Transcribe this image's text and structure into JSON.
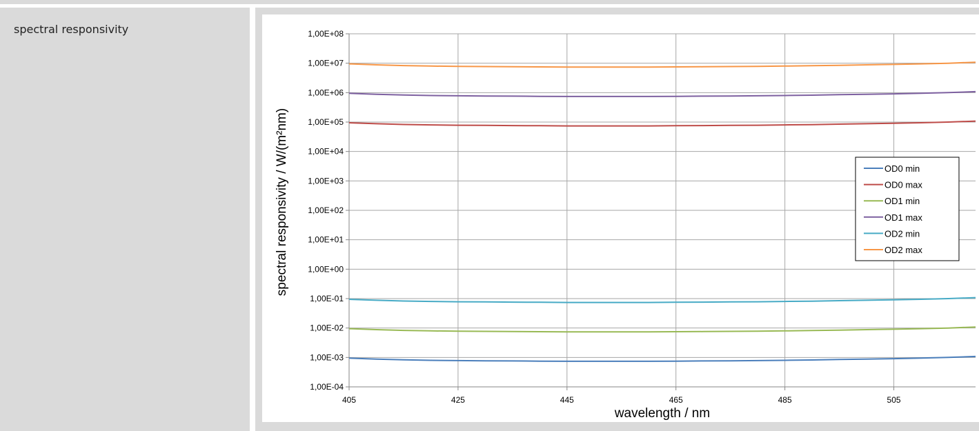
{
  "row_label": "spectral responsivity",
  "chart_data": {
    "type": "line",
    "title": "",
    "xlabel": "wavelength / nm",
    "ylabel": "spectral responsivity  / W/(m²nm)",
    "yscale": "log",
    "xlim": [
      405,
      520
    ],
    "ylim": [
      0.0001,
      100000000
    ],
    "x_ticks": [
      405,
      425,
      445,
      465,
      485,
      505
    ],
    "y_tick_labels": [
      "1,00E+08",
      "1,00E+07",
      "1,00E+06",
      "1,00E+05",
      "1,00E+04",
      "1,00E+03",
      "1,00E+02",
      "1,00E+01",
      "1,00E+00",
      "1,00E-01",
      "1,00E-02",
      "1,00E-03",
      "1,00E-04"
    ],
    "grid": true,
    "legend_position": "right",
    "x": [
      405,
      410,
      415,
      420,
      425,
      430,
      435,
      440,
      445,
      450,
      455,
      460,
      465,
      470,
      475,
      480,
      485,
      490,
      495,
      500,
      505,
      510,
      515,
      520
    ],
    "series": [
      {
        "name": "OD0 min",
        "color": "#4a7ebb",
        "values": [
          0.00095,
          0.00088,
          0.00083,
          0.0008,
          0.00078,
          0.00077,
          0.00076,
          0.00075,
          0.00074,
          0.00074,
          0.00074,
          0.00074,
          0.00075,
          0.00076,
          0.00077,
          0.00078,
          0.0008,
          0.00082,
          0.00085,
          0.00088,
          0.00091,
          0.00095,
          0.001,
          0.00108
        ]
      },
      {
        "name": "OD0 max",
        "color": "#be4b48",
        "values": [
          95000,
          88000,
          83000,
          80000,
          78000,
          77000,
          76000,
          75000,
          74000,
          74000,
          74000,
          74000,
          75000,
          76000,
          77000,
          78000,
          80000,
          82000,
          85000,
          88000,
          91000,
          95000,
          100000,
          108000
        ]
      },
      {
        "name": "OD1 min",
        "color": "#98b954",
        "values": [
          0.0095,
          0.0088,
          0.0083,
          0.008,
          0.0078,
          0.0077,
          0.0076,
          0.0075,
          0.0074,
          0.0074,
          0.0074,
          0.0074,
          0.0075,
          0.0076,
          0.0077,
          0.0078,
          0.008,
          0.0082,
          0.0085,
          0.0088,
          0.0091,
          0.0095,
          0.01,
          0.0108
        ]
      },
      {
        "name": "OD1 max",
        "color": "#7d60a0",
        "values": [
          950000,
          880000,
          830000,
          800000,
          780000,
          770000,
          760000,
          750000,
          740000,
          740000,
          740000,
          740000,
          750000,
          760000,
          770000,
          780000,
          800000,
          820000,
          850000,
          880000,
          910000,
          950000,
          1000000,
          1080000
        ]
      },
      {
        "name": "OD2 min",
        "color": "#46aac5",
        "values": [
          0.095,
          0.088,
          0.083,
          0.08,
          0.078,
          0.077,
          0.076,
          0.075,
          0.074,
          0.074,
          0.074,
          0.074,
          0.075,
          0.076,
          0.077,
          0.078,
          0.08,
          0.082,
          0.085,
          0.088,
          0.091,
          0.095,
          0.1,
          0.108
        ]
      },
      {
        "name": "OD2 max",
        "color": "#f79646",
        "values": [
          9500000,
          8800000,
          8300000,
          8000000,
          7800000,
          7700000,
          7600000,
          7500000,
          7400000,
          7400000,
          7400000,
          7400000,
          7500000,
          7600000,
          7700000,
          7800000,
          8000000,
          8200000,
          8500000,
          8800000,
          9100000,
          9500000,
          10000000,
          10800000
        ]
      }
    ]
  }
}
